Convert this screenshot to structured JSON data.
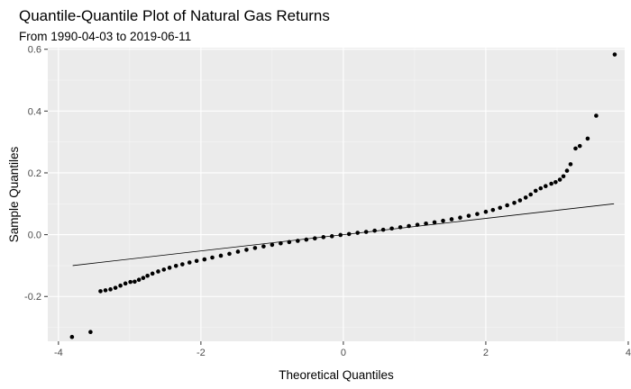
{
  "chart_data": {
    "type": "scatter",
    "title": "Quantile-Quantile Plot of Natural Gas Returns",
    "subtitle": "From 1990-04-03 to 2019-06-11",
    "xlabel": "Theoretical Quantiles",
    "ylabel": "Sample Quantiles",
    "xlim": [
      -4.15,
      3.95
    ],
    "ylim": [
      -0.345,
      0.605
    ],
    "x_ticks": [
      -4,
      -2,
      0,
      2,
      4
    ],
    "x_tick_labels": [
      "-4",
      "-2",
      "0",
      "2",
      "4"
    ],
    "y_ticks": [
      -0.2,
      0.0,
      0.2,
      0.4,
      0.6
    ],
    "y_tick_labels": [
      "-0.2",
      "0.0",
      "0.2",
      "0.4",
      "0.6"
    ],
    "grid": true,
    "reference_line": {
      "x": [
        -3.8,
        3.8
      ],
      "y": [
        -0.1,
        0.1
      ]
    },
    "points": [
      [
        -3.81,
        -0.331
      ],
      [
        -3.55,
        -0.315
      ],
      [
        -3.41,
        -0.183
      ],
      [
        -3.34,
        -0.18
      ],
      [
        -3.27,
        -0.177
      ],
      [
        -3.2,
        -0.172
      ],
      [
        -3.13,
        -0.165
      ],
      [
        -3.06,
        -0.158
      ],
      [
        -2.99,
        -0.153
      ],
      [
        -2.93,
        -0.152
      ],
      [
        -2.87,
        -0.146
      ],
      [
        -2.81,
        -0.14
      ],
      [
        -2.75,
        -0.133
      ],
      [
        -2.68,
        -0.126
      ],
      [
        -2.6,
        -0.119
      ],
      [
        -2.52,
        -0.113
      ],
      [
        -2.44,
        -0.107
      ],
      [
        -2.35,
        -0.101
      ],
      [
        -2.26,
        -0.096
      ],
      [
        -2.16,
        -0.09
      ],
      [
        -2.06,
        -0.085
      ],
      [
        -1.95,
        -0.08
      ],
      [
        -1.84,
        -0.074
      ],
      [
        -1.72,
        -0.068
      ],
      [
        -1.6,
        -0.062
      ],
      [
        -1.48,
        -0.055
      ],
      [
        -1.36,
        -0.049
      ],
      [
        -1.24,
        -0.043
      ],
      [
        -1.12,
        -0.038
      ],
      [
        -1.0,
        -0.033
      ],
      [
        -0.88,
        -0.028
      ],
      [
        -0.76,
        -0.024
      ],
      [
        -0.64,
        -0.02
      ],
      [
        -0.52,
        -0.016
      ],
      [
        -0.4,
        -0.012
      ],
      [
        -0.28,
        -0.008
      ],
      [
        -0.16,
        -0.005
      ],
      [
        -0.04,
        -0.001
      ],
      [
        0.08,
        0.002
      ],
      [
        0.2,
        0.006
      ],
      [
        0.32,
        0.009
      ],
      [
        0.44,
        0.013
      ],
      [
        0.56,
        0.016
      ],
      [
        0.68,
        0.02
      ],
      [
        0.8,
        0.024
      ],
      [
        0.92,
        0.028
      ],
      [
        1.04,
        0.032
      ],
      [
        1.16,
        0.036
      ],
      [
        1.28,
        0.04
      ],
      [
        1.4,
        0.045
      ],
      [
        1.52,
        0.05
      ],
      [
        1.64,
        0.055
      ],
      [
        1.76,
        0.061
      ],
      [
        1.88,
        0.067
      ],
      [
        2.0,
        0.074
      ],
      [
        2.1,
        0.08
      ],
      [
        2.2,
        0.087
      ],
      [
        2.3,
        0.095
      ],
      [
        2.4,
        0.103
      ],
      [
        2.48,
        0.111
      ],
      [
        2.56,
        0.12
      ],
      [
        2.63,
        0.13
      ],
      [
        2.7,
        0.142
      ],
      [
        2.77,
        0.15
      ],
      [
        2.84,
        0.157
      ],
      [
        2.92,
        0.165
      ],
      [
        2.98,
        0.17
      ],
      [
        3.04,
        0.178
      ],
      [
        3.09,
        0.189
      ],
      [
        3.14,
        0.207
      ],
      [
        3.19,
        0.228
      ],
      [
        3.26,
        0.279
      ],
      [
        3.32,
        0.287
      ],
      [
        3.43,
        0.311
      ],
      [
        3.55,
        0.385
      ],
      [
        3.81,
        0.583
      ]
    ]
  }
}
